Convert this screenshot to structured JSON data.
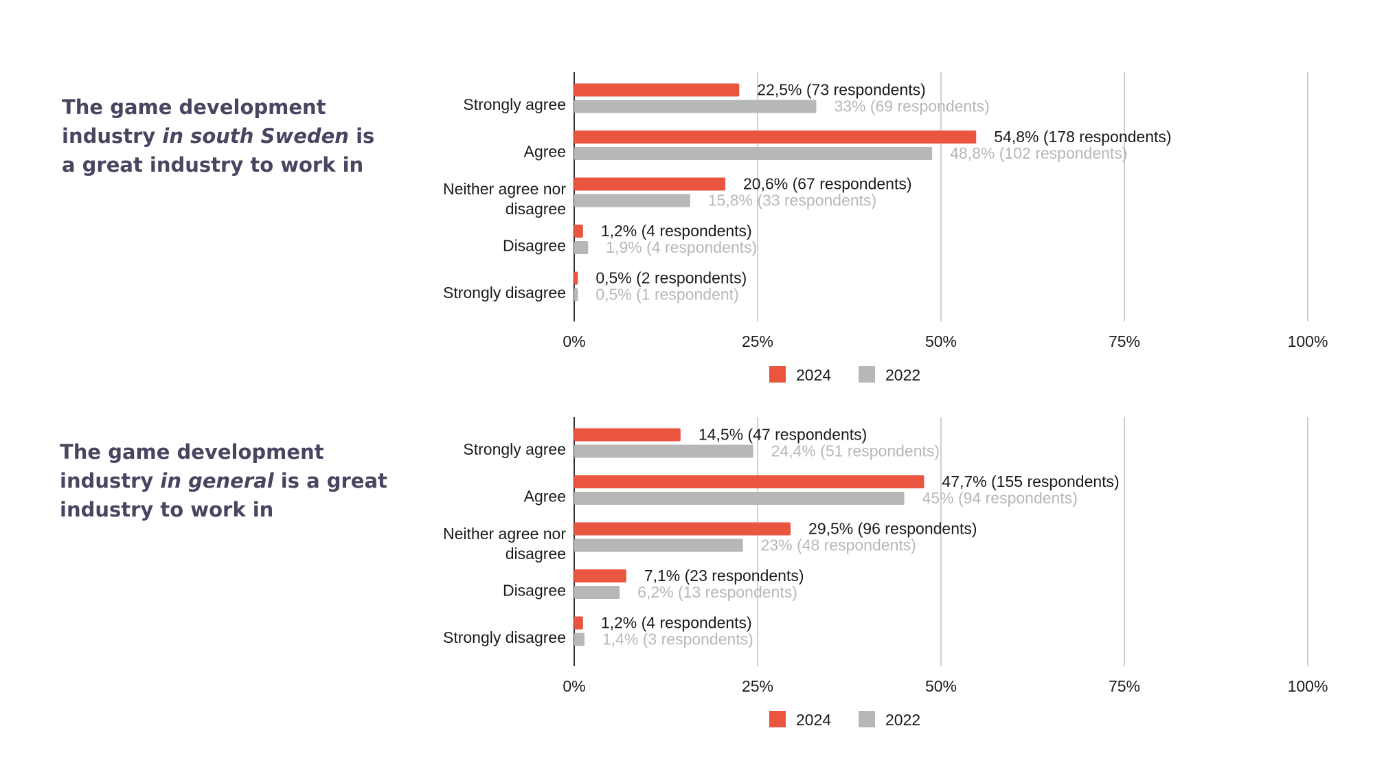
{
  "panels": [
    {
      "title": {
        "pre": "The game development industry ",
        "em": "in south Sweden",
        "post": " is a great industry to work in"
      }
    },
    {
      "title": {
        "pre": "The game development industry ",
        "em": "in general",
        "post": " is a great industry to work in"
      }
    }
  ],
  "colors": {
    "series_2024": "#ea5540",
    "series_2022": "#b7b7b7",
    "label_2024": "#1a1a1a",
    "label_2022": "#b7b7b7",
    "grid": "#d0d0d0",
    "axis": "#333333",
    "title": "#4a4460"
  },
  "chart_data": [
    {
      "type": "bar",
      "orientation": "horizontal",
      "categories": [
        "Strongly agree",
        "Agree",
        "Neither agree nor disagree",
        "Disagree",
        "Strongly disagree"
      ],
      "x_ticks": [
        "0%",
        "25%",
        "50%",
        "75%",
        "100%"
      ],
      "xlim": [
        0,
        100
      ],
      "grid": true,
      "legend_position": "bottom",
      "series": [
        {
          "name": "2024",
          "values": [
            22.5,
            54.8,
            20.6,
            1.2,
            0.5
          ],
          "labels": [
            "22,5% (73 respondents)",
            "54,8% (178 respondents)",
            "20,6% (67 respondents)",
            "1,2% (4 respondents)",
            "0,5% (2 respondents)"
          ]
        },
        {
          "name": "2022",
          "values": [
            33,
            48.8,
            15.8,
            1.9,
            0.5
          ],
          "labels": [
            "33% (69 respondents)",
            "48,8% (102 respondents)",
            "15,8% (33 respondents)",
            "1,9% (4 respondents)",
            "0,5% (1 respondent)"
          ]
        }
      ]
    },
    {
      "type": "bar",
      "orientation": "horizontal",
      "categories": [
        "Strongly agree",
        "Agree",
        "Neither agree nor disagree",
        "Disagree",
        "Strongly disagree"
      ],
      "x_ticks": [
        "0%",
        "25%",
        "50%",
        "75%",
        "100%"
      ],
      "xlim": [
        0,
        100
      ],
      "grid": true,
      "legend_position": "bottom",
      "series": [
        {
          "name": "2024",
          "values": [
            14.5,
            47.7,
            29.5,
            7.1,
            1.2
          ],
          "labels": [
            "14,5% (47 respondents)",
            "47,7% (155 respondents)",
            "29,5% (96 respondents)",
            "7,1% (23 respondents)",
            "1,2% (4 respondents)"
          ]
        },
        {
          "name": "2022",
          "values": [
            24.4,
            45,
            23,
            6.2,
            1.4
          ],
          "labels": [
            "24,4% (51 respondents)",
            "45% (94 respondents)",
            "23% (48 respondents)",
            "6,2% (13 respondents)",
            "1,4% (3 respondents)"
          ]
        }
      ]
    }
  ]
}
